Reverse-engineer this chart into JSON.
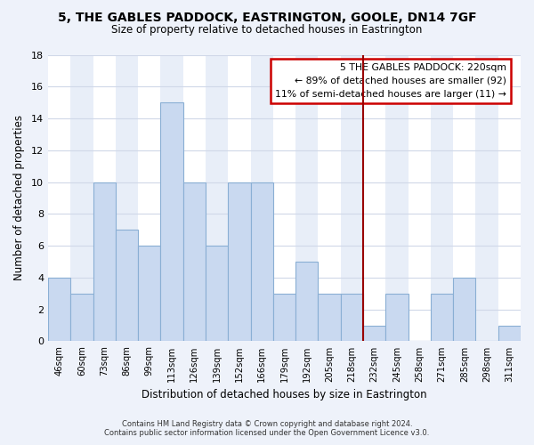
{
  "title": "5, THE GABLES PADDOCK, EASTRINGTON, GOOLE, DN14 7GF",
  "subtitle": "Size of property relative to detached houses in Eastrington",
  "xlabel": "Distribution of detached houses by size in Eastrington",
  "ylabel": "Number of detached properties",
  "bin_labels": [
    "46sqm",
    "60sqm",
    "73sqm",
    "86sqm",
    "99sqm",
    "113sqm",
    "126sqm",
    "139sqm",
    "152sqm",
    "166sqm",
    "179sqm",
    "192sqm",
    "205sqm",
    "218sqm",
    "232sqm",
    "245sqm",
    "258sqm",
    "271sqm",
    "285sqm",
    "298sqm",
    "311sqm"
  ],
  "bar_values": [
    4,
    3,
    10,
    7,
    6,
    15,
    10,
    6,
    10,
    10,
    3,
    5,
    3,
    3,
    1,
    3,
    0,
    3,
    4,
    0,
    1
  ],
  "bar_color": "#c9d9f0",
  "bar_edge_color": "#8aafd4",
  "vline_x_idx": 13,
  "vline_color": "#990000",
  "annotation_title": "5 THE GABLES PADDOCK: 220sqm",
  "annotation_line1": "← 89% of detached houses are smaller (92)",
  "annotation_line2": "11% of semi-detached houses are larger (11) →",
  "annotation_box_color": "#ffffff",
  "annotation_box_edge": "#cc0000",
  "ylim": [
    0,
    18
  ],
  "yticks": [
    0,
    2,
    4,
    6,
    8,
    10,
    12,
    14,
    16,
    18
  ],
  "footer_line1": "Contains HM Land Registry data © Crown copyright and database right 2024.",
  "footer_line2": "Contains public sector information licensed under the Open Government Licence v3.0.",
  "background_color": "#eef2fa",
  "grid_color": "#d0d8e8",
  "col_bg_even": "#ffffff",
  "col_bg_odd": "#e8eef8"
}
